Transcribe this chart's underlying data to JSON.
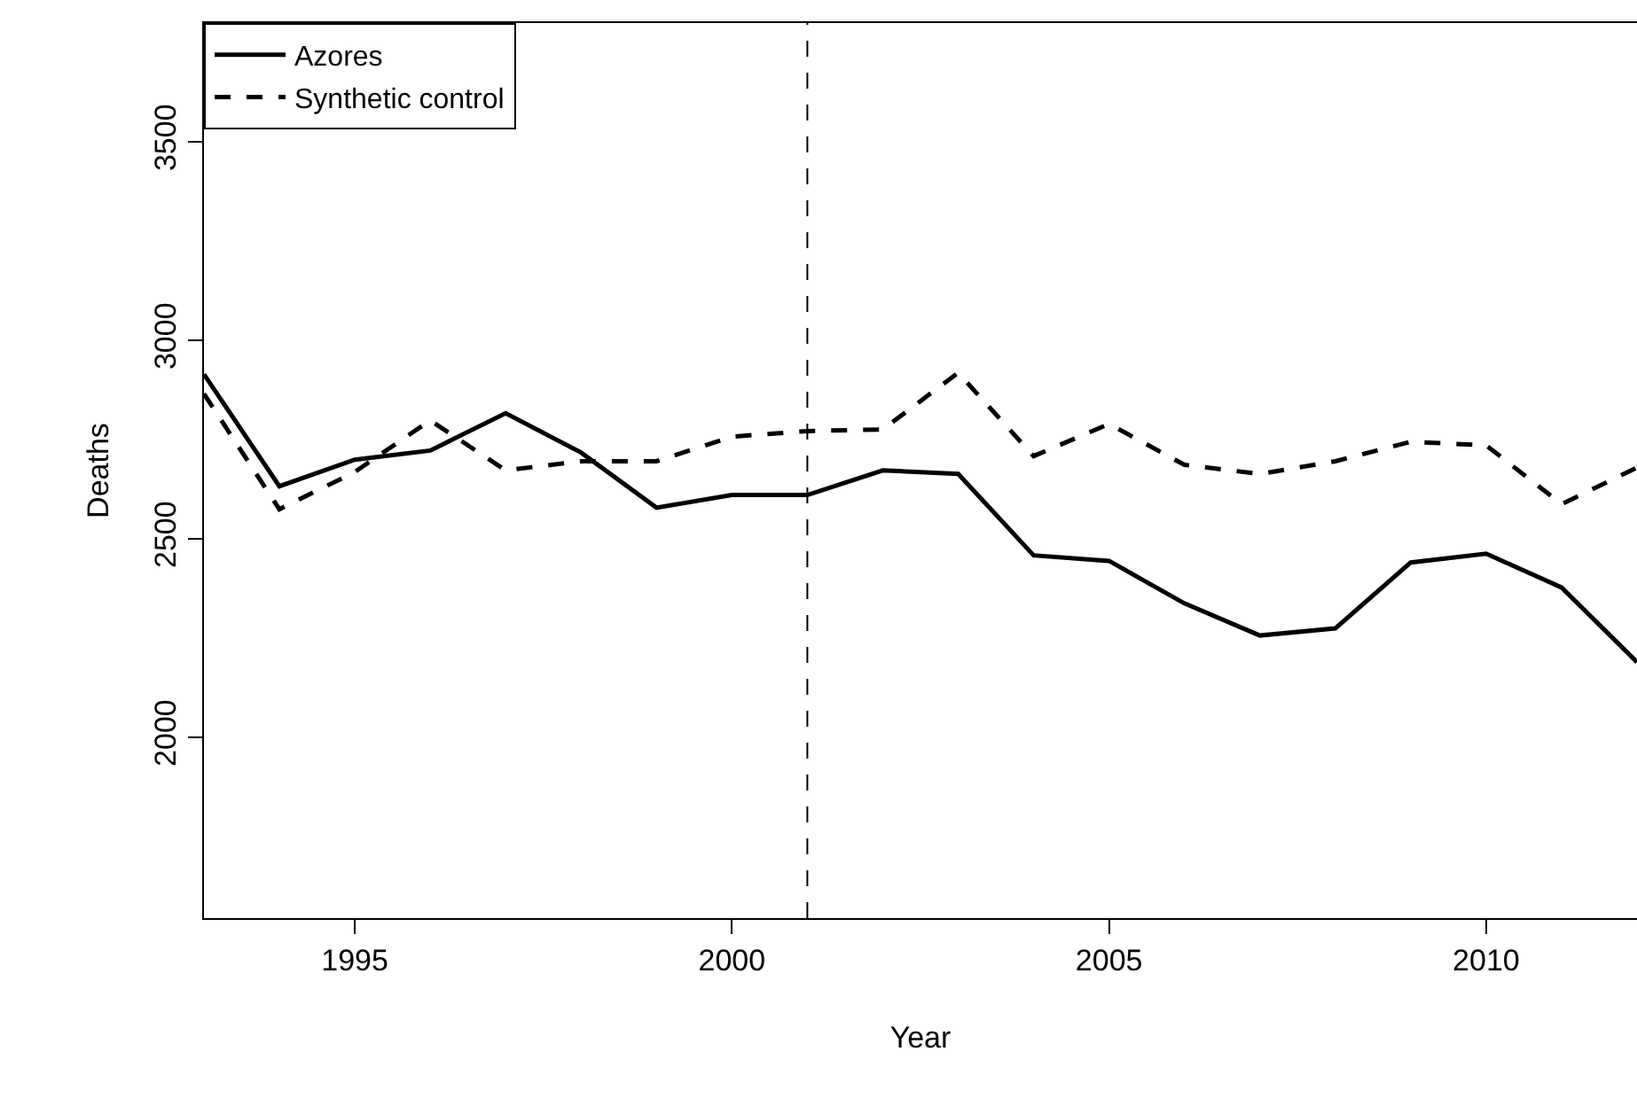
{
  "chart_data": {
    "type": "line",
    "xlabel": "Year",
    "ylabel": "Deaths",
    "x": [
      1993,
      1994,
      1995,
      1996,
      1997,
      1998,
      1999,
      2000,
      2001,
      2002,
      2003,
      2004,
      2005,
      2006,
      2007,
      2008,
      2009,
      2010,
      2011,
      2012
    ],
    "series": [
      {
        "name": "Azores",
        "color": "#000000",
        "line_style": "solid",
        "values": [
          2915,
          2633,
          2700,
          2723,
          2817,
          2718,
          2579,
          2611,
          2611,
          2673,
          2664,
          2459,
          2445,
          2338,
          2257,
          2275,
          2441,
          2463,
          2378,
          2190
        ]
      },
      {
        "name": "Synthetic control",
        "color": "#000000",
        "line_style": "dashed",
        "values": [
          2866,
          2575,
          2669,
          2799,
          2673,
          2696,
          2696,
          2758,
          2772,
          2776,
          2919,
          2709,
          2790,
          2687,
          2664,
          2696,
          2745,
          2736,
          2588,
          2680
        ]
      }
    ],
    "xlim": [
      1993,
      2012
    ],
    "ylim": [
      1545,
      3800
    ],
    "xticks": [
      1995,
      2000,
      2005,
      2010
    ],
    "yticks": [
      2000,
      2500,
      3000,
      3500
    ],
    "ref_lines": [
      {
        "axis": "x",
        "value": 2001,
        "line_style": "dashed",
        "color": "#000000"
      }
    ],
    "legend": "top left"
  }
}
